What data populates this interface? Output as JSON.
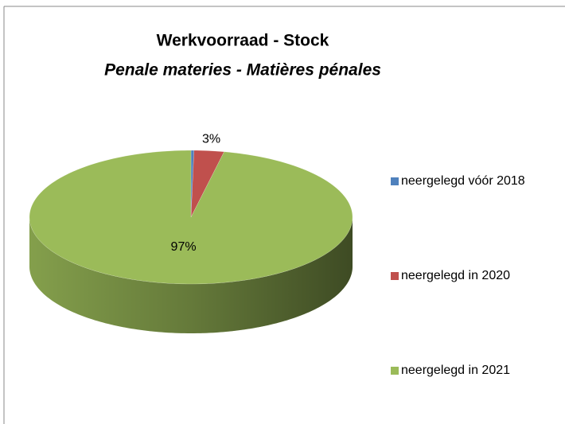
{
  "chart_data": {
    "type": "pie3d",
    "title": "Werkvoorraad - Stock",
    "subtitle": "Penale materies - Matières pénales",
    "categories": [
      "neergelegd vóór 2018",
      "neergelegd in 2020",
      "neergelegd in 2021"
    ],
    "values": [
      0.3,
      3,
      97
    ],
    "value_labels": [
      null,
      "3%",
      "97%"
    ],
    "colors": [
      "#4f81bd",
      "#c0504d",
      "#9bbb59"
    ],
    "legend": "right"
  }
}
